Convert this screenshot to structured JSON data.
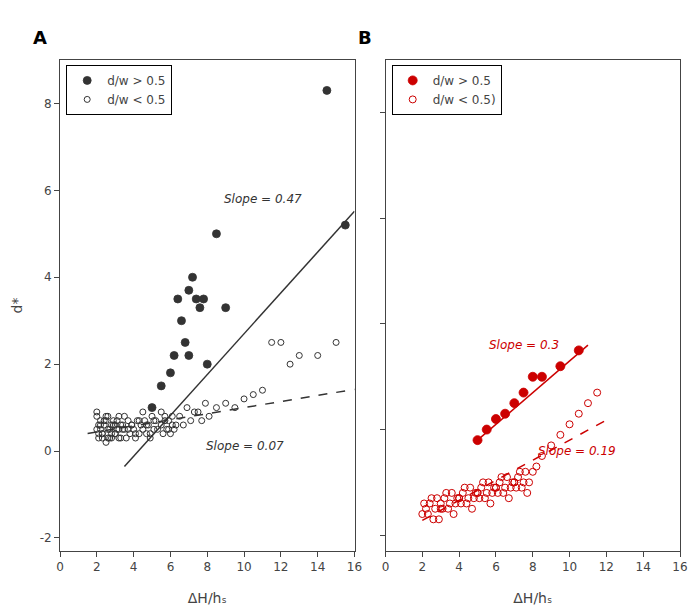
{
  "chart_data": [
    {
      "type": "scatter",
      "title": "A",
      "x_label": "ΔH/hₛ",
      "y_label": "d*",
      "series": [
        {
          "name": "d/w > 0.5",
          "color": "#333333",
          "marker": "filled",
          "x": [
            5.0,
            5.5,
            6.0,
            6.2,
            6.4,
            6.6,
            6.8,
            7.0,
            7.0,
            7.2,
            7.4,
            7.6,
            7.8,
            8.0,
            8.5,
            9.0,
            14.5,
            15.5
          ],
          "values": [
            1.0,
            1.5,
            1.8,
            2.2,
            3.5,
            3.0,
            2.5,
            3.7,
            2.2,
            4.0,
            3.5,
            3.3,
            3.5,
            2.0,
            5.0,
            3.3,
            8.3,
            5.2
          ]
        },
        {
          "name": "d/w < 0.5",
          "color": "#333333",
          "marker": "open",
          "x": [
            2.0,
            2.1,
            2.2,
            2.3,
            2.4,
            2.5,
            2.6,
            2.7,
            2.8,
            2.9,
            3.0,
            3.1,
            3.2,
            3.3,
            3.4,
            2.0,
            2.1,
            2.2,
            2.3,
            2.5,
            2.6,
            2.8,
            3.0,
            3.2,
            3.4,
            2.0,
            2.2,
            2.4,
            2.6,
            2.8,
            3.0,
            3.2,
            2.1,
            2.3,
            2.5,
            2.7,
            2.9,
            3.1,
            3.3,
            3.5,
            3.6,
            3.7,
            3.8,
            3.9,
            4.0,
            4.1,
            4.2,
            4.3,
            4.4,
            3.5,
            3.7,
            3.9,
            4.1,
            4.3,
            4.5,
            4.6,
            4.7,
            4.8,
            4.9,
            5.0,
            5.1,
            5.2,
            4.5,
            4.7,
            4.9,
            5.1,
            5.3,
            5.5,
            5.6,
            5.7,
            5.8,
            5.9,
            6.0,
            6.1,
            6.2,
            5.5,
            5.7,
            5.9,
            6.1,
            6.3,
            6.5,
            6.7,
            6.9,
            7.1,
            7.3,
            7.5,
            7.7,
            7.9,
            8.1,
            8.5,
            9.0,
            9.5,
            10.0,
            10.5,
            11.0,
            11.5,
            12.0,
            12.5,
            13.0,
            14.0,
            15.0
          ],
          "values": [
            0.5,
            0.3,
            0.7,
            0.4,
            0.6,
            0.2,
            0.8,
            0.5,
            0.3,
            0.6,
            0.4,
            0.7,
            0.5,
            0.3,
            0.6,
            0.8,
            0.4,
            0.6,
            0.3,
            0.7,
            0.5,
            0.4,
            0.6,
            0.3,
            0.5,
            0.9,
            0.5,
            0.7,
            0.3,
            0.6,
            0.4,
            0.8,
            0.6,
            0.4,
            0.8,
            0.3,
            0.7,
            0.5,
            0.6,
            0.5,
            0.3,
            0.7,
            0.4,
            0.6,
            0.5,
            0.3,
            0.7,
            0.4,
            0.6,
            0.8,
            0.5,
            0.6,
            0.4,
            0.7,
            0.5,
            0.7,
            0.4,
            0.6,
            0.3,
            0.8,
            0.5,
            0.7,
            0.9,
            0.6,
            0.4,
            0.7,
            0.5,
            0.6,
            0.4,
            0.8,
            0.5,
            0.7,
            0.4,
            0.6,
            0.5,
            0.9,
            0.7,
            0.5,
            0.8,
            0.6,
            0.8,
            0.6,
            1.0,
            0.7,
            0.9,
            0.9,
            0.7,
            1.1,
            0.8,
            1.0,
            1.1,
            1.0,
            1.2,
            1.3,
            1.4,
            2.5,
            2.5,
            2.0,
            2.2,
            2.2,
            2.5
          ]
        },
        {
          "type": "line",
          "color": "#333333",
          "line_style": "solid",
          "x": [
            3.5,
            16.0
          ],
          "values": [
            -0.355,
            5.52
          ]
        },
        {
          "type": "line",
          "color": "#333333",
          "line_style": "dash",
          "x": [
            1.5,
            16.0
          ],
          "values": [
            0.405,
            1.42
          ]
        }
      ],
      "annotations": [
        {
          "text": "Slope = 0.47",
          "x": 8.8,
          "y": 5.8,
          "color": "#333333"
        },
        {
          "text": "Slope = 0.07",
          "x": 7.8,
          "y": 0.12,
          "color": "#333333"
        }
      ],
      "xlim": [
        0,
        16
      ],
      "ylim": [
        -2.3,
        9.0
      ],
      "xticks": [
        0,
        2,
        4,
        6,
        8,
        10,
        12,
        14,
        16
      ],
      "yticks": [
        -2,
        0,
        2,
        4,
        6,
        8
      ],
      "grid": false,
      "legend": "upper left"
    },
    {
      "type": "scatter",
      "title": "B",
      "x_label": "ΔH/hₛ",
      "series": [
        {
          "name": "d/w > 0.5",
          "color": "#cc0000",
          "marker": "filled",
          "x": [
            5.0,
            5.5,
            6.0,
            6.5,
            7.0,
            7.5,
            8.0,
            8.5,
            9.5,
            10.5
          ],
          "values": [
            1.8,
            2.0,
            2.2,
            2.3,
            2.5,
            2.7,
            3.0,
            3.0,
            3.2,
            3.5
          ]
        },
        {
          "name": "d/w < 0.5)",
          "color": "#cc0000",
          "marker": "open",
          "x": [
            2.0,
            2.2,
            2.4,
            2.6,
            2.8,
            3.0,
            2.1,
            2.3,
            2.5,
            2.7,
            2.9,
            3.0,
            3.2,
            3.4,
            3.6,
            3.8,
            4.0,
            3.1,
            3.3,
            3.5,
            3.7,
            3.9,
            4.0,
            4.2,
            4.4,
            4.6,
            4.8,
            5.0,
            4.1,
            4.3,
            4.5,
            4.7,
            4.9,
            5.0,
            5.2,
            5.4,
            5.6,
            5.8,
            6.0,
            5.1,
            5.3,
            5.5,
            5.7,
            5.9,
            6.0,
            6.2,
            6.4,
            6.6,
            6.8,
            7.0,
            6.1,
            6.3,
            6.5,
            6.7,
            6.9,
            7.0,
            7.2,
            7.4,
            7.6,
            7.8,
            7.1,
            7.3,
            7.5,
            7.7,
            8.0,
            8.2,
            8.5,
            9.0,
            9.5,
            10.0,
            10.5,
            11.0,
            11.5
          ],
          "values": [
            0.4,
            0.5,
            0.6,
            0.3,
            0.7,
            0.5,
            0.6,
            0.4,
            0.7,
            0.5,
            0.3,
            0.6,
            0.7,
            0.5,
            0.8,
            0.6,
            0.7,
            0.5,
            0.8,
            0.6,
            0.4,
            0.7,
            0.7,
            0.8,
            0.6,
            0.9,
            0.7,
            0.8,
            0.6,
            0.9,
            0.7,
            0.5,
            0.8,
            0.8,
            0.9,
            0.7,
            1.0,
            0.8,
            0.9,
            0.7,
            1.0,
            0.8,
            0.6,
            0.9,
            0.9,
            1.0,
            0.8,
            1.1,
            0.9,
            1.0,
            0.8,
            1.1,
            0.9,
            0.7,
            1.0,
            1.0,
            1.1,
            0.9,
            1.2,
            1.0,
            0.9,
            1.2,
            1.0,
            0.8,
            1.2,
            1.3,
            1.5,
            1.7,
            1.9,
            2.1,
            2.3,
            2.5,
            2.7
          ]
        },
        {
          "type": "line",
          "color": "#cc0000",
          "line_style": "solid",
          "x": [
            5.0,
            11.0
          ],
          "values": [
            1.8,
            3.6
          ]
        },
        {
          "type": "line",
          "color": "#cc0000",
          "line_style": "dash",
          "x": [
            2.0,
            12.0
          ],
          "values": [
            0.28,
            2.18
          ]
        }
      ],
      "annotations": [
        {
          "text": "Slope = 0.3",
          "x": 5.5,
          "y": 3.6,
          "color": "#cc0000"
        },
        {
          "text": "Slope = 0.19",
          "x": 8.2,
          "y": 1.6,
          "color": "#cc0000"
        }
      ],
      "xlim": [
        0,
        16
      ],
      "ylim": [
        -0.3,
        9.0
      ],
      "xticks": [
        0,
        2,
        4,
        6,
        8,
        10,
        12,
        14,
        16
      ],
      "yticks": [
        0,
        2,
        4,
        6,
        8
      ],
      "grid": false,
      "legend": "upper left",
      "tick_labels": "x"
    }
  ]
}
